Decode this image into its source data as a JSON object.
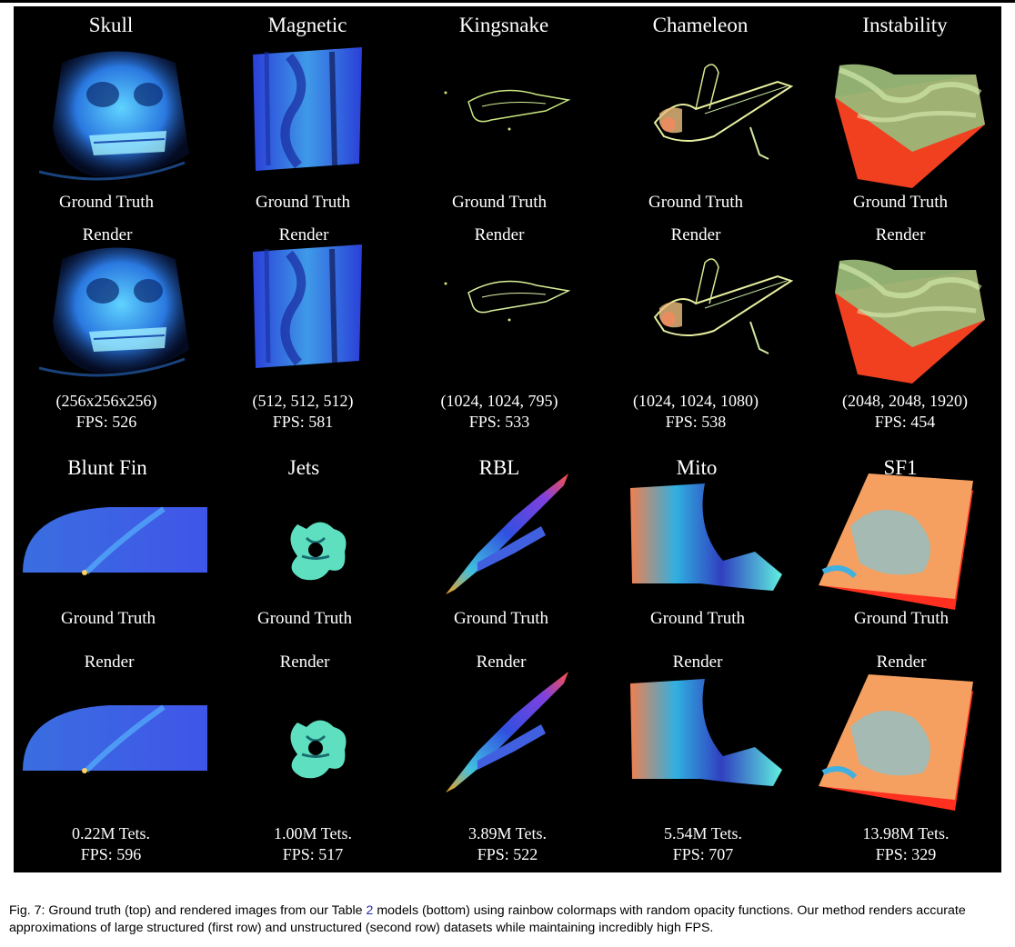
{
  "figure": {
    "caption_label": "Fig. 7:",
    "caption_text_before": " Ground truth (top) and rendered images from our Table ",
    "caption_table_ref": "2",
    "caption_text_after": " models (bottom) using rainbow colormaps with random opacity functions. Our method renders accurate approximations of large structured (first row) and unstructured (second row) datasets while maintaining incredibly high FPS."
  },
  "labels": {
    "ground_truth": "Ground Truth",
    "render": "Render"
  },
  "rows": [
    {
      "datasets": [
        {
          "name": "Skull",
          "size": "(256x256x256)",
          "fps": "FPS: 526",
          "image": "skull-volume-render"
        },
        {
          "name": "Magnetic",
          "size": "(512, 512, 512)",
          "fps": "FPS: 581",
          "image": "magnetic-volume-render"
        },
        {
          "name": "Kingsnake",
          "size": "(1024, 1024, 795)",
          "fps": "FPS: 533",
          "image": "kingsnake-volume-render"
        },
        {
          "name": "Chameleon",
          "size": "(1024, 1024, 1080)",
          "fps": "FPS: 538",
          "image": "chameleon-volume-render"
        },
        {
          "name": "Instability",
          "size": "(2048, 2048, 1920)",
          "fps": "FPS: 454",
          "image": "instability-volume-render"
        }
      ]
    },
    {
      "datasets": [
        {
          "name": "Blunt Fin",
          "size": "0.22M Tets.",
          "fps": "FPS: 596",
          "image": "blunt-fin-volume-render"
        },
        {
          "name": "Jets",
          "size": "1.00M Tets.",
          "fps": "FPS: 517",
          "image": "jets-volume-render"
        },
        {
          "name": "RBL",
          "size": "3.89M Tets.",
          "fps": "FPS: 522",
          "image": "rbl-volume-render"
        },
        {
          "name": "Mito",
          "size": "5.54M Tets.",
          "fps": "FPS: 707",
          "image": "mito-volume-render"
        },
        {
          "name": "SF1",
          "size": "13.98M Tets.",
          "fps": "FPS: 329",
          "image": "sf1-volume-render"
        }
      ]
    }
  ],
  "colors": {
    "panel": "#000000",
    "text": "#ffffff",
    "ref_link": "#2a2ab0"
  }
}
